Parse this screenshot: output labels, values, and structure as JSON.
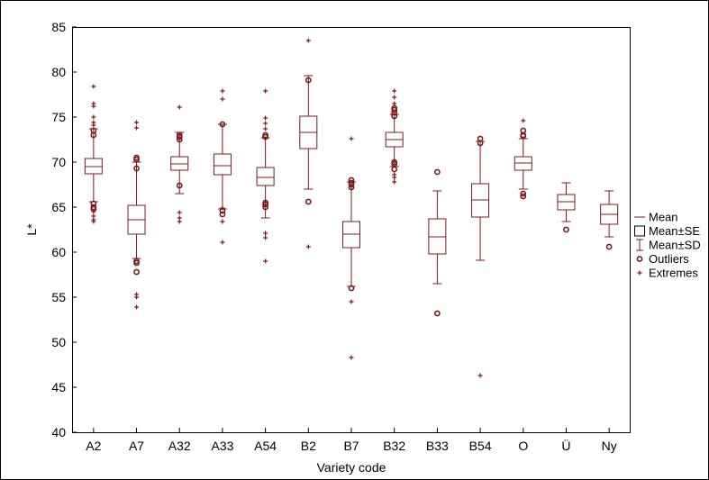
{
  "chart_data": {
    "type": "boxplot",
    "xlabel": "Variety code",
    "ylabel": "L*",
    "ylim": [
      40,
      85
    ],
    "yticks": [
      40,
      45,
      50,
      55,
      60,
      65,
      70,
      75,
      80,
      85
    ],
    "grid": false,
    "legend_position": "right",
    "color": "#7b1c1c",
    "categories": [
      "A2",
      "A7",
      "A32",
      "A33",
      "A54",
      "B2",
      "B7",
      "B32",
      "B33",
      "B54",
      "O",
      "Ü",
      "Ny"
    ],
    "groups": [
      {
        "category": "A2",
        "mean": 69.5,
        "se_low": 68.7,
        "se_high": 70.4,
        "sd_low": 65.6,
        "sd_high": 73.7,
        "outliers": [
          73.5,
          73.0,
          65.4,
          65.0,
          64.8
        ],
        "extremes": [
          78.4,
          76.5,
          76.2,
          75.0,
          74.4,
          74.1,
          64.5,
          64.0,
          63.6,
          63.4
        ]
      },
      {
        "category": "A7",
        "mean": 63.6,
        "se_low": 62.0,
        "se_high": 65.2,
        "sd_low": 59.3,
        "sd_high": 70.0,
        "outliers": [
          70.3,
          70.5,
          69.3,
          59.0,
          58.8,
          57.8
        ],
        "extremes": [
          74.4,
          73.8,
          55.3,
          55.0,
          53.9
        ]
      },
      {
        "category": "A32",
        "mean": 69.8,
        "se_low": 69.1,
        "se_high": 70.6,
        "sd_low": 66.5,
        "sd_high": 73.3,
        "outliers": [
          73.0,
          72.8,
          72.5,
          67.4
        ],
        "extremes": [
          76.1,
          64.4,
          63.8,
          63.4
        ]
      },
      {
        "category": "A33",
        "mean": 69.6,
        "se_low": 68.6,
        "se_high": 70.9,
        "sd_low": 64.8,
        "sd_high": 74.2,
        "outliers": [
          74.2,
          64.6,
          64.2
        ],
        "extremes": [
          77.9,
          77.0,
          64.9,
          63.4,
          61.1
        ]
      },
      {
        "category": "A54",
        "mean": 68.3,
        "se_low": 67.4,
        "se_high": 69.4,
        "sd_low": 63.8,
        "sd_high": 72.7,
        "outliers": [
          73.0,
          72.8,
          65.5,
          65.3,
          65.0
        ],
        "extremes": [
          77.9,
          74.9,
          74.3,
          73.7,
          62.1,
          61.6,
          59.0
        ]
      },
      {
        "category": "B2",
        "mean": 73.3,
        "se_low": 71.5,
        "se_high": 75.1,
        "sd_low": 67.0,
        "sd_high": 79.6,
        "outliers": [
          79.1,
          65.6
        ],
        "extremes": [
          83.5,
          60.6
        ]
      },
      {
        "category": "B7",
        "mean": 62.0,
        "se_low": 60.5,
        "se_high": 63.4,
        "sd_low": 56.2,
        "sd_high": 67.8,
        "outliers": [
          68.0,
          67.7,
          67.5,
          67.2,
          56.0
        ],
        "extremes": [
          72.6,
          54.5,
          48.3
        ]
      },
      {
        "category": "B32",
        "mean": 72.5,
        "se_low": 71.7,
        "se_high": 73.3,
        "sd_low": 69.5,
        "sd_high": 75.3,
        "outliers": [
          76.0,
          75.8,
          75.5,
          75.1,
          70.0,
          69.8,
          69.2
        ],
        "extremes": [
          77.9,
          77.2,
          76.5,
          68.6,
          68.3,
          67.8
        ]
      },
      {
        "category": "B33",
        "mean": 61.7,
        "se_low": 59.8,
        "se_high": 63.7,
        "sd_low": 56.5,
        "sd_high": 66.8,
        "outliers": [
          68.9,
          53.2
        ],
        "extremes": []
      },
      {
        "category": "B54",
        "mean": 65.8,
        "se_low": 63.9,
        "se_high": 67.6,
        "sd_low": 59.1,
        "sd_high": 72.3,
        "outliers": [
          72.6,
          72.1
        ],
        "extremes": [
          46.3
        ]
      },
      {
        "category": "O",
        "mean": 69.9,
        "se_low": 69.1,
        "se_high": 70.6,
        "sd_low": 67.0,
        "sd_high": 72.6,
        "outliers": [
          73.5,
          73.0,
          72.9,
          66.5,
          66.2
        ],
        "extremes": [
          74.6
        ]
      },
      {
        "category": "Ü",
        "mean": 65.6,
        "se_low": 64.7,
        "se_high": 66.4,
        "sd_low": 63.4,
        "sd_high": 67.7,
        "outliers": [
          62.5
        ],
        "extremes": []
      },
      {
        "category": "Ny",
        "mean": 64.2,
        "se_low": 63.1,
        "se_high": 65.3,
        "sd_low": 61.7,
        "sd_high": 66.8,
        "outliers": [
          60.6
        ],
        "extremes": []
      }
    ],
    "legend": [
      {
        "key": "mean",
        "label": "Mean"
      },
      {
        "key": "se",
        "label": "Mean±SE"
      },
      {
        "key": "sd",
        "label": "Mean±SD"
      },
      {
        "key": "outlier",
        "label": "Outliers"
      },
      {
        "key": "extreme",
        "label": "Extremes"
      }
    ]
  }
}
